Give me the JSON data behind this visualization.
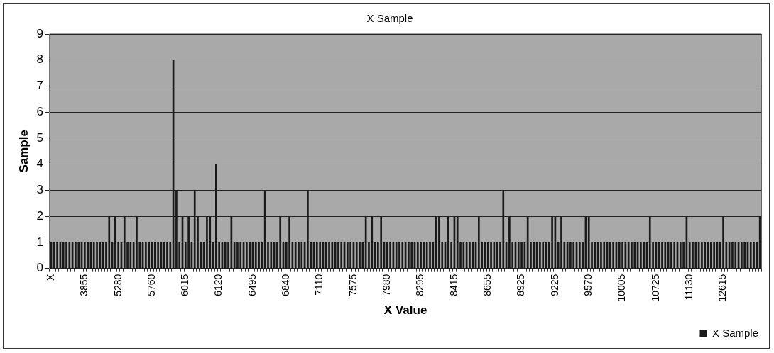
{
  "chart_data": {
    "type": "bar",
    "title": "X Sample",
    "xlabel": "X Value",
    "ylabel": "Sample",
    "categories": [
      "X",
      null,
      null,
      null,
      null,
      null,
      null,
      null,
      null,
      null,
      null,
      "3855",
      null,
      null,
      null,
      null,
      null,
      null,
      null,
      null,
      null,
      null,
      "5280",
      null,
      null,
      null,
      null,
      null,
      null,
      null,
      null,
      null,
      null,
      "5760",
      null,
      null,
      null,
      null,
      null,
      null,
      null,
      null,
      null,
      null,
      "6015",
      null,
      null,
      null,
      null,
      null,
      null,
      null,
      null,
      null,
      null,
      "6120",
      null,
      null,
      null,
      null,
      null,
      null,
      null,
      null,
      null,
      null,
      "6495",
      null,
      null,
      null,
      null,
      null,
      null,
      null,
      null,
      null,
      null,
      "6840",
      null,
      null,
      null,
      null,
      null,
      null,
      null,
      null,
      null,
      null,
      "7110",
      null,
      null,
      null,
      null,
      null,
      null,
      null,
      null,
      null,
      null,
      "7575",
      null,
      null,
      null,
      null,
      null,
      null,
      null,
      null,
      null,
      null,
      "7980",
      null,
      null,
      null,
      null,
      null,
      null,
      null,
      null,
      null,
      null,
      "8295",
      null,
      null,
      null,
      null,
      null,
      null,
      null,
      null,
      null,
      null,
      "8415",
      null,
      null,
      null,
      null,
      null,
      null,
      null,
      null,
      null,
      null,
      "8655",
      null,
      null,
      null,
      null,
      null,
      null,
      null,
      null,
      null,
      null,
      "8925",
      null,
      null,
      null,
      null,
      null,
      null,
      null,
      null,
      null,
      null,
      "9225",
      null,
      null,
      null,
      null,
      null,
      null,
      null,
      null,
      null,
      null,
      "9570",
      null,
      null,
      null,
      null,
      null,
      null,
      null,
      null,
      null,
      null,
      "10005",
      null,
      null,
      null,
      null,
      null,
      null,
      null,
      null,
      null,
      null,
      "10725",
      null,
      null,
      null,
      null,
      null,
      null,
      null,
      null,
      null,
      null,
      "11130",
      null,
      null,
      null,
      null,
      null,
      null,
      null,
      null,
      null,
      null,
      "12615",
      null,
      null,
      null,
      null,
      null,
      null,
      null,
      null,
      null,
      null,
      null,
      null
    ],
    "series": [
      {
        "name": "X Sample",
        "color": "#1a1a1a",
        "values": [
          1,
          1,
          1,
          1,
          1,
          1,
          1,
          1,
          1,
          1,
          1,
          1,
          1,
          1,
          1,
          1,
          1,
          1,
          1,
          2,
          1,
          2,
          1,
          1,
          2,
          1,
          1,
          1,
          2,
          1,
          1,
          1,
          1,
          1,
          1,
          1,
          1,
          1,
          1,
          1,
          8,
          3,
          1,
          2,
          1,
          2,
          1,
          3,
          2,
          1,
          1,
          2,
          2,
          1,
          4,
          1,
          1,
          1,
          1,
          2,
          1,
          1,
          1,
          1,
          1,
          1,
          1,
          1,
          1,
          1,
          3,
          1,
          1,
          1,
          1,
          2,
          1,
          1,
          2,
          1,
          1,
          1,
          1,
          1,
          3,
          1,
          1,
          1,
          1,
          1,
          1,
          1,
          1,
          1,
          1,
          1,
          1,
          1,
          1,
          1,
          1,
          1,
          1,
          2,
          1,
          2,
          1,
          1,
          2,
          1,
          1,
          1,
          1,
          1,
          1,
          1,
          1,
          1,
          1,
          1,
          1,
          1,
          1,
          1,
          1,
          1,
          2,
          2,
          1,
          1,
          2,
          1,
          2,
          2,
          1,
          1,
          1,
          1,
          1,
          1,
          2,
          1,
          1,
          1,
          1,
          1,
          1,
          1,
          3,
          1,
          2,
          1,
          1,
          1,
          1,
          1,
          2,
          1,
          1,
          1,
          1,
          1,
          1,
          1,
          2,
          2,
          1,
          2,
          1,
          1,
          1,
          1,
          1,
          1,
          1,
          2,
          2,
          1,
          1,
          1,
          1,
          1,
          1,
          1,
          1,
          1,
          1,
          1,
          1,
          1,
          1,
          1,
          1,
          1,
          1,
          1,
          2,
          1,
          1,
          1,
          1,
          1,
          1,
          1,
          1,
          1,
          1,
          1,
          2,
          1,
          1,
          1,
          1,
          1,
          1,
          1,
          1,
          1,
          1,
          1,
          2,
          1,
          1,
          1,
          1,
          1,
          1,
          1,
          1,
          1,
          1,
          1,
          2
        ]
      }
    ],
    "ylim": [
      0,
      9
    ],
    "yticks": [
      0,
      1,
      2,
      3,
      4,
      5,
      6,
      7,
      8,
      9
    ],
    "grid": "y",
    "legend": "bottom right"
  }
}
